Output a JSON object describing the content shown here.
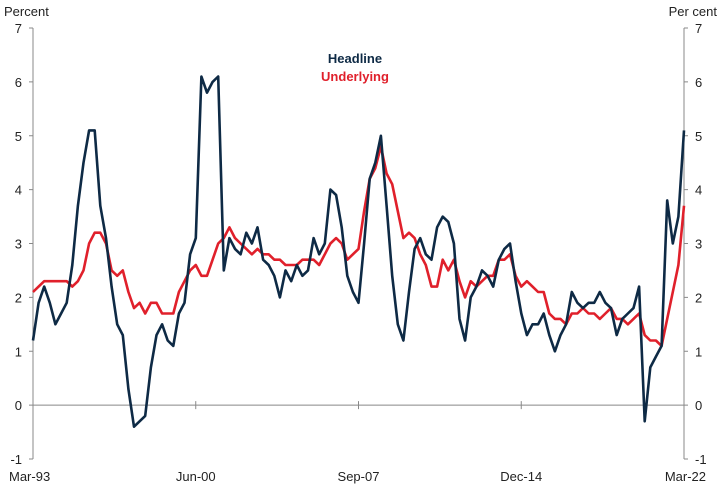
{
  "chart_data": {
    "type": "line",
    "title": "",
    "ylabel_left": "Percent",
    "ylabel_right": "Per cent",
    "ylim": [
      -1,
      7
    ],
    "y_ticks": [
      "7",
      "6",
      "5",
      "4",
      "3",
      "2",
      "1",
      "0",
      "-1"
    ],
    "x_start": "Mar-93",
    "x_end": "Mar-22",
    "frequency": "quarterly",
    "x_ticks": [
      {
        "label": "Mar-93",
        "index": 0
      },
      {
        "label": "Jun-00",
        "index": 29
      },
      {
        "label": "Sep-07",
        "index": 58
      },
      {
        "label": "Dec-14",
        "index": 87
      },
      {
        "label": "Mar-22",
        "index": 116
      }
    ],
    "legend": {
      "placement": "top-center"
    },
    "grid": false,
    "series": [
      {
        "name": "Headline",
        "color": "#0e2a45",
        "values": [
          1.2,
          1.9,
          2.2,
          1.9,
          1.5,
          1.7,
          1.9,
          2.6,
          3.7,
          4.5,
          5.1,
          5.1,
          3.7,
          3.1,
          2.2,
          1.5,
          1.3,
          0.3,
          -0.4,
          -0.3,
          -0.2,
          0.7,
          1.3,
          1.5,
          1.2,
          1.1,
          1.7,
          1.9,
          2.8,
          3.1,
          6.1,
          5.8,
          6.0,
          6.1,
          2.5,
          3.1,
          2.9,
          2.8,
          3.2,
          3.0,
          3.3,
          2.7,
          2.6,
          2.4,
          2.0,
          2.5,
          2.3,
          2.6,
          2.4,
          2.5,
          3.1,
          2.8,
          3.0,
          4.0,
          3.9,
          3.3,
          2.4,
          2.1,
          1.9,
          3.0,
          4.2,
          4.5,
          5.0,
          3.7,
          2.4,
          1.5,
          1.2,
          2.1,
          2.9,
          3.1,
          2.8,
          2.7,
          3.3,
          3.5,
          3.4,
          3.0,
          1.6,
          1.2,
          2.0,
          2.2,
          2.5,
          2.4,
          2.2,
          2.7,
          2.9,
          3.0,
          2.3,
          1.7,
          1.3,
          1.5,
          1.5,
          1.7,
          1.3,
          1.0,
          1.3,
          1.5,
          2.1,
          1.9,
          1.8,
          1.9,
          1.9,
          2.1,
          1.9,
          1.8,
          1.3,
          1.6,
          1.7,
          1.8,
          2.2,
          -0.3,
          0.7,
          0.9,
          1.1,
          3.8,
          3.0,
          3.5,
          5.1
        ]
      },
      {
        "name": "Underlying",
        "color": "#e0202b",
        "values": [
          2.1,
          2.2,
          2.3,
          2.3,
          2.3,
          2.3,
          2.3,
          2.2,
          2.3,
          2.5,
          3.0,
          3.2,
          3.2,
          3.0,
          2.5,
          2.4,
          2.5,
          2.1,
          1.8,
          1.9,
          1.7,
          1.9,
          1.9,
          1.7,
          1.7,
          1.7,
          2.1,
          2.3,
          2.5,
          2.6,
          2.4,
          2.4,
          2.7,
          3.0,
          3.1,
          3.3,
          3.1,
          3.0,
          2.9,
          2.8,
          2.9,
          2.8,
          2.8,
          2.7,
          2.7,
          2.6,
          2.6,
          2.6,
          2.7,
          2.7,
          2.7,
          2.6,
          2.8,
          3.0,
          3.1,
          3.0,
          2.7,
          2.8,
          2.9,
          3.6,
          4.2,
          4.4,
          4.8,
          4.3,
          4.1,
          3.6,
          3.1,
          3.2,
          3.1,
          2.8,
          2.6,
          2.2,
          2.2,
          2.7,
          2.5,
          2.7,
          2.3,
          2.0,
          2.3,
          2.2,
          2.3,
          2.4,
          2.4,
          2.7,
          2.7,
          2.8,
          2.4,
          2.2,
          2.3,
          2.2,
          2.1,
          2.1,
          1.7,
          1.6,
          1.6,
          1.5,
          1.7,
          1.7,
          1.8,
          1.7,
          1.7,
          1.6,
          1.7,
          1.8,
          1.6,
          1.6,
          1.5,
          1.6,
          1.7,
          1.3,
          1.2,
          1.2,
          1.1,
          1.6,
          2.1,
          2.6,
          3.7
        ]
      }
    ]
  }
}
